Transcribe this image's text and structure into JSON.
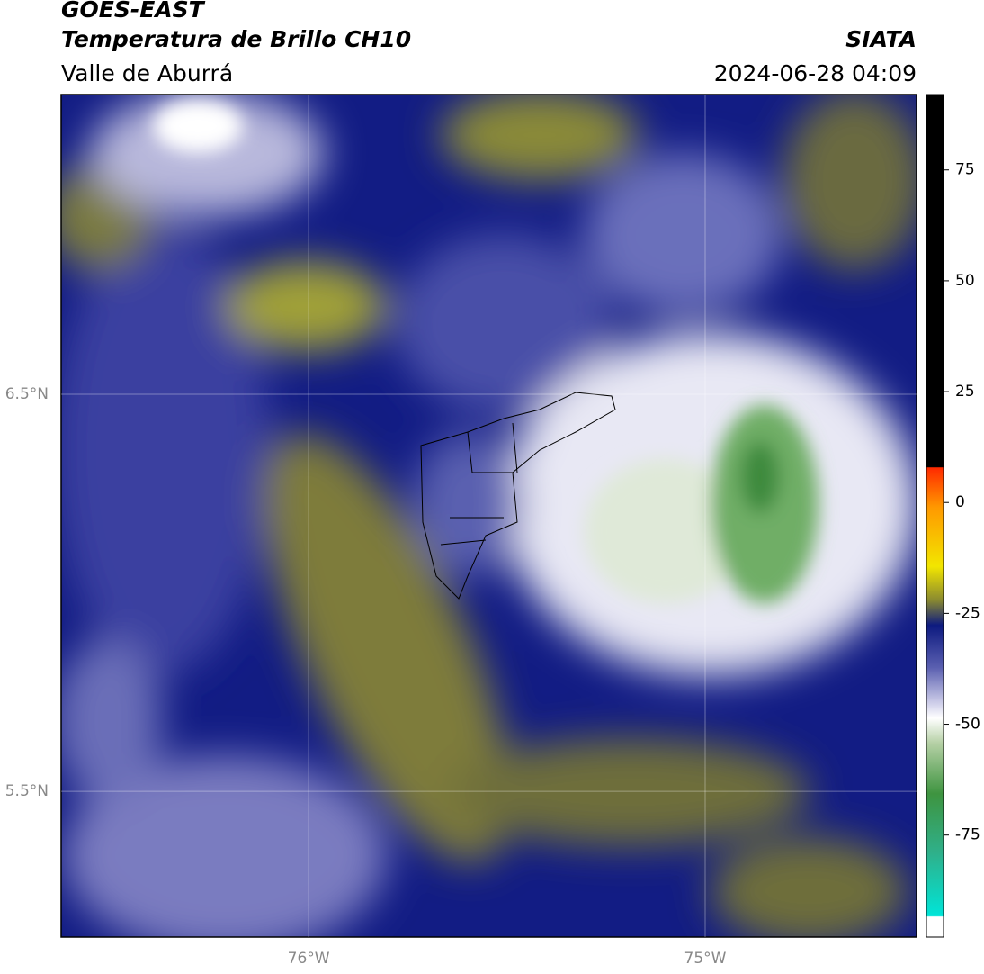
{
  "header": {
    "title": "GOES-EAST",
    "subtitle": "Temperatura de Brillo CH10",
    "region": "Valle de Aburrá",
    "agency": "SIATA",
    "datetime": "2024-06-28 04:09"
  },
  "map": {
    "xlim": [
      -76.624,
      -74.467
    ],
    "ylim": [
      5.133,
      7.255
    ],
    "xticks": [
      {
        "value": -76,
        "label": "76°W"
      },
      {
        "value": -75,
        "label": "75°W"
      }
    ],
    "yticks": [
      {
        "value": 6.5,
        "label": "6.5°N"
      },
      {
        "value": 5.5,
        "label": "5.5°N"
      }
    ],
    "grid": true
  },
  "colorbar": {
    "lim": [
      -98,
      92
    ],
    "ticks": [
      75,
      50,
      25,
      0,
      -25,
      -50,
      -75
    ]
  }
}
